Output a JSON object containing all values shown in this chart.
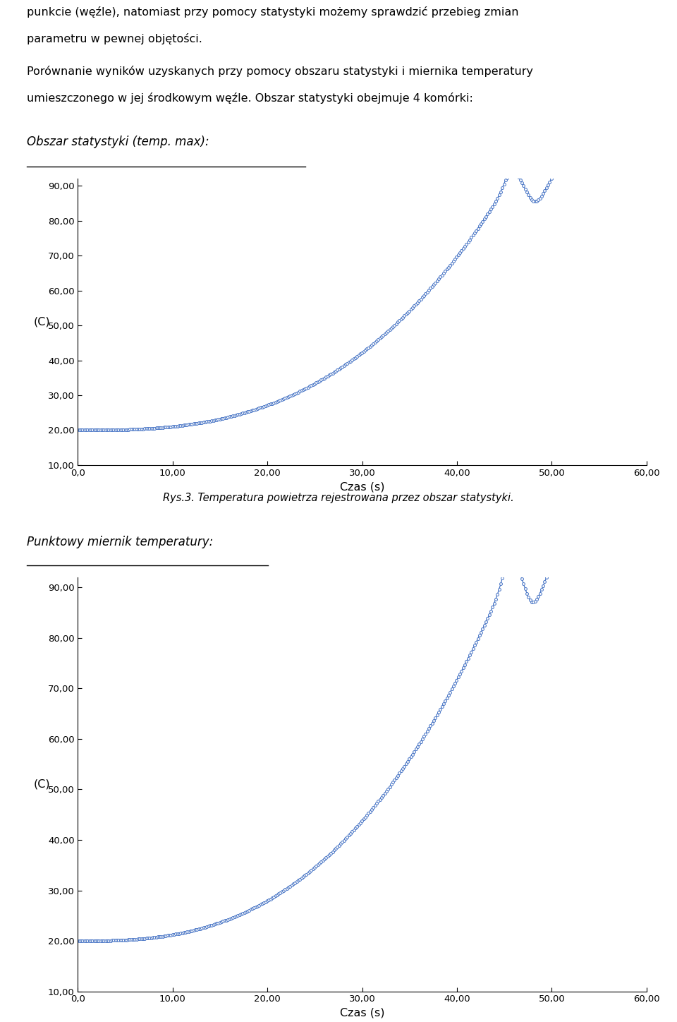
{
  "text_line1": "punkcie (węźle), natomiast przy pomocy statystyki możemy sprawdzić przebieg zmian",
  "text_line2": "parametru w pewnej objętości.",
  "text_para1": "Porównanie wyników uzyskanych przy pomocy obszaru statystyki i miernika temperatury",
  "text_para2": "umieszczonego w jej środkowym węźle. Obszar statystyki obejmuje 4 komórki:",
  "heading1": "Obszar statystyki (temp. max):",
  "caption1": "Rys.3. Temperatura powietrza rejestrowana przez obszar statystyki.",
  "heading2": "Punktowy miernik temperatury:",
  "ylabel": "(C)",
  "xlabel": "Czas (s)",
  "yticks": [
    10.0,
    20.0,
    30.0,
    40.0,
    50.0,
    60.0,
    70.0,
    80.0,
    90.0
  ],
  "xticks": [
    0.0,
    10.0,
    20.0,
    30.0,
    40.0,
    50.0,
    60.0
  ],
  "xlim": [
    0.0,
    60.0
  ],
  "ylim": [
    10.0,
    92.0
  ],
  "line_color": "#4472C4",
  "bg_color": "#ffffff"
}
